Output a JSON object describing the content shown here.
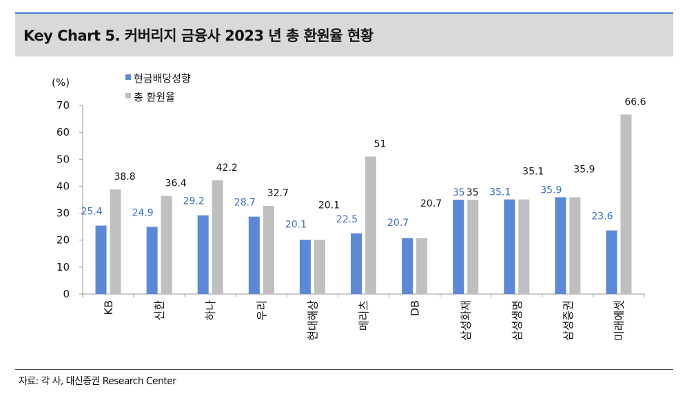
{
  "header": {
    "title": "Key Chart 5. 커버리지 금융사 2023 년 총 환원율 현황"
  },
  "source": "자료: 각 사, 대신증권 Research Center",
  "colors": {
    "dividend": "#5b89d6",
    "total": "#bfbfbf",
    "dividend_label": "#3b6fc4",
    "total_label": "#111111"
  },
  "chart_data": {
    "type": "bar",
    "ylabel": "(%)",
    "ylim": [
      0,
      70
    ],
    "yticks": [
      0,
      10,
      20,
      30,
      40,
      50,
      60,
      70
    ],
    "ytick_labels": [
      "0",
      "10",
      "20",
      "30",
      "40",
      "50",
      "60",
      "70"
    ],
    "categories": [
      "KB",
      "신한",
      "하나",
      "우리",
      "현대해상",
      "메리츠",
      "DB",
      "삼성화재",
      "삼성생명",
      "삼성증권",
      "미래에셋"
    ],
    "legend_position": "top-left",
    "series": [
      {
        "name": "현금배당성향",
        "values": [
          25.4,
          24.9,
          29.2,
          28.7,
          20.1,
          22.5,
          20.7,
          35,
          35.1,
          35.9,
          23.6
        ],
        "labels": [
          "25.4",
          "24.9",
          "29.2",
          "28.7",
          "20.1",
          "22.5",
          "20.7",
          "35",
          "35.1",
          "35.9",
          "23.6"
        ]
      },
      {
        "name": "총 환원율",
        "values": [
          38.8,
          36.4,
          42.2,
          32.7,
          20.1,
          51,
          20.7,
          35,
          35.1,
          35.9,
          66.6
        ],
        "labels": [
          "38.8",
          "36.4",
          "42.2",
          "32.7",
          "20.1",
          "51",
          "20.7",
          "35",
          "35.1",
          "35.9",
          "66.6"
        ]
      }
    ]
  }
}
